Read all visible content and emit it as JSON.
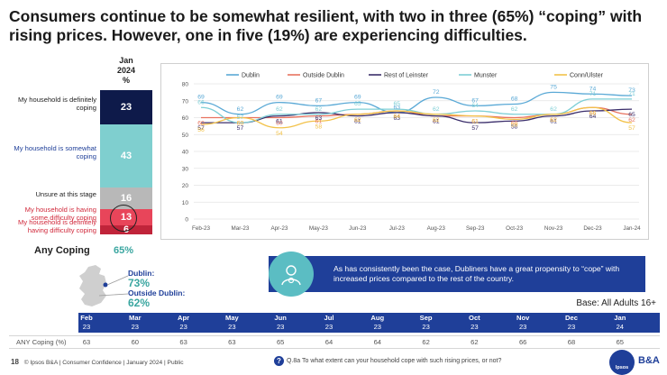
{
  "title": "Consumers continue to be somewhat resilient, with two in three (65%) “coping” with rising prices. However, one in five (19%) are experiencing difficulties.",
  "stack": {
    "header": [
      "Jan",
      "2024",
      "%"
    ],
    "segments": [
      {
        "label": "My household is definitely coping",
        "value": "23",
        "color": "#0e1a4a",
        "label_color": "#222222"
      },
      {
        "label": "My household is somewhat coping",
        "value": "43",
        "color": "#7fcfcf",
        "label_color": "#1f3f99"
      },
      {
        "label": "Unsure at this stage",
        "value": "16",
        "color": "#b8b8b8",
        "label_color": "#222222"
      },
      {
        "label": "My household is having some difficulty coping",
        "value": "13",
        "color": "#e8455a",
        "label_color": "#d12a3c"
      },
      {
        "label": "My household is definitely having difficulty coping",
        "value": "6",
        "color": "#c0243a",
        "label_color": "#d12a3c"
      }
    ],
    "any_coping_label": "Any Coping",
    "any_coping_value": "65%"
  },
  "chart_data": {
    "type": "line",
    "categories": [
      "Feb-23",
      "Mar-23",
      "Apr-23",
      "May-23",
      "Jun-23",
      "Jul-23",
      "Aug-23",
      "Sep-23",
      "Oct-23",
      "Nov-23",
      "Dec-23",
      "Jan-24"
    ],
    "ylim": [
      0,
      80
    ],
    "yticks": [
      0,
      10,
      20,
      30,
      40,
      50,
      60,
      70,
      80
    ],
    "legend_position": "top",
    "series": [
      {
        "name": "Dublin",
        "color": "#5aa9d6",
        "values": [
          69,
          62,
          69,
          67,
          69,
          63,
          72,
          67,
          68,
          75,
          74,
          73
        ]
      },
      {
        "name": "Outside Dublin",
        "color": "#e8735f",
        "values": [
          60,
          60,
          60,
          61,
          62,
          64,
          61,
          61,
          60,
          62,
          66,
          62
        ]
      },
      {
        "name": "Rest of Leinster",
        "color": "#3b2e6b",
        "values": [
          57,
          57,
          61,
          63,
          61,
          63,
          61,
          57,
          58,
          61,
          64,
          65
        ]
      },
      {
        "name": "Munster",
        "color": "#7fcfd6",
        "values": [
          66,
          57,
          62,
          62,
          65,
          65,
          62,
          64,
          62,
          62,
          71,
          71
        ]
      },
      {
        "name": "Conn/Ulster",
        "color": "#f2c24a",
        "values": [
          56,
          60,
          54,
          58,
          62,
          64,
          62,
          61,
          59,
          62,
          66,
          57
        ]
      }
    ]
  },
  "map": {
    "dublin_label": "Dublin:",
    "dublin_value": "73%",
    "outside_label": "Outside Dublin:",
    "outside_value": "62%"
  },
  "banner": {
    "text": "As has consistently been the case, Dubliners have a great propensity to “cope” with increased prices compared to the rest of the country."
  },
  "base": "Base: All Adults 16+",
  "table": {
    "row_label": "ANY Coping (%)",
    "columns": [
      {
        "m": "Feb",
        "y": "23",
        "v": "63"
      },
      {
        "m": "Mar",
        "y": "23",
        "v": "60"
      },
      {
        "m": "Apr",
        "y": "23",
        "v": "63"
      },
      {
        "m": "May",
        "y": "23",
        "v": "63"
      },
      {
        "m": "Jun",
        "y": "23",
        "v": "65"
      },
      {
        "m": "Jul",
        "y": "23",
        "v": "64"
      },
      {
        "m": "Aug",
        "y": "23",
        "v": "64"
      },
      {
        "m": "Sep",
        "y": "23",
        "v": "62"
      },
      {
        "m": "Oct",
        "y": "23",
        "v": "62"
      },
      {
        "m": "Nov",
        "y": "23",
        "v": "66"
      },
      {
        "m": "Dec",
        "y": "23",
        "v": "68"
      },
      {
        "m": "Jan",
        "y": "24",
        "v": "65"
      }
    ]
  },
  "footer": {
    "page": "18",
    "text": "© Ipsos B&A | Consumer Confidence | January 2024 | Public",
    "question": "Q.8a To what extent can your household cope with such rising prices, or not?",
    "logo_text": "B&A",
    "logo_mark": "Ipsos"
  }
}
